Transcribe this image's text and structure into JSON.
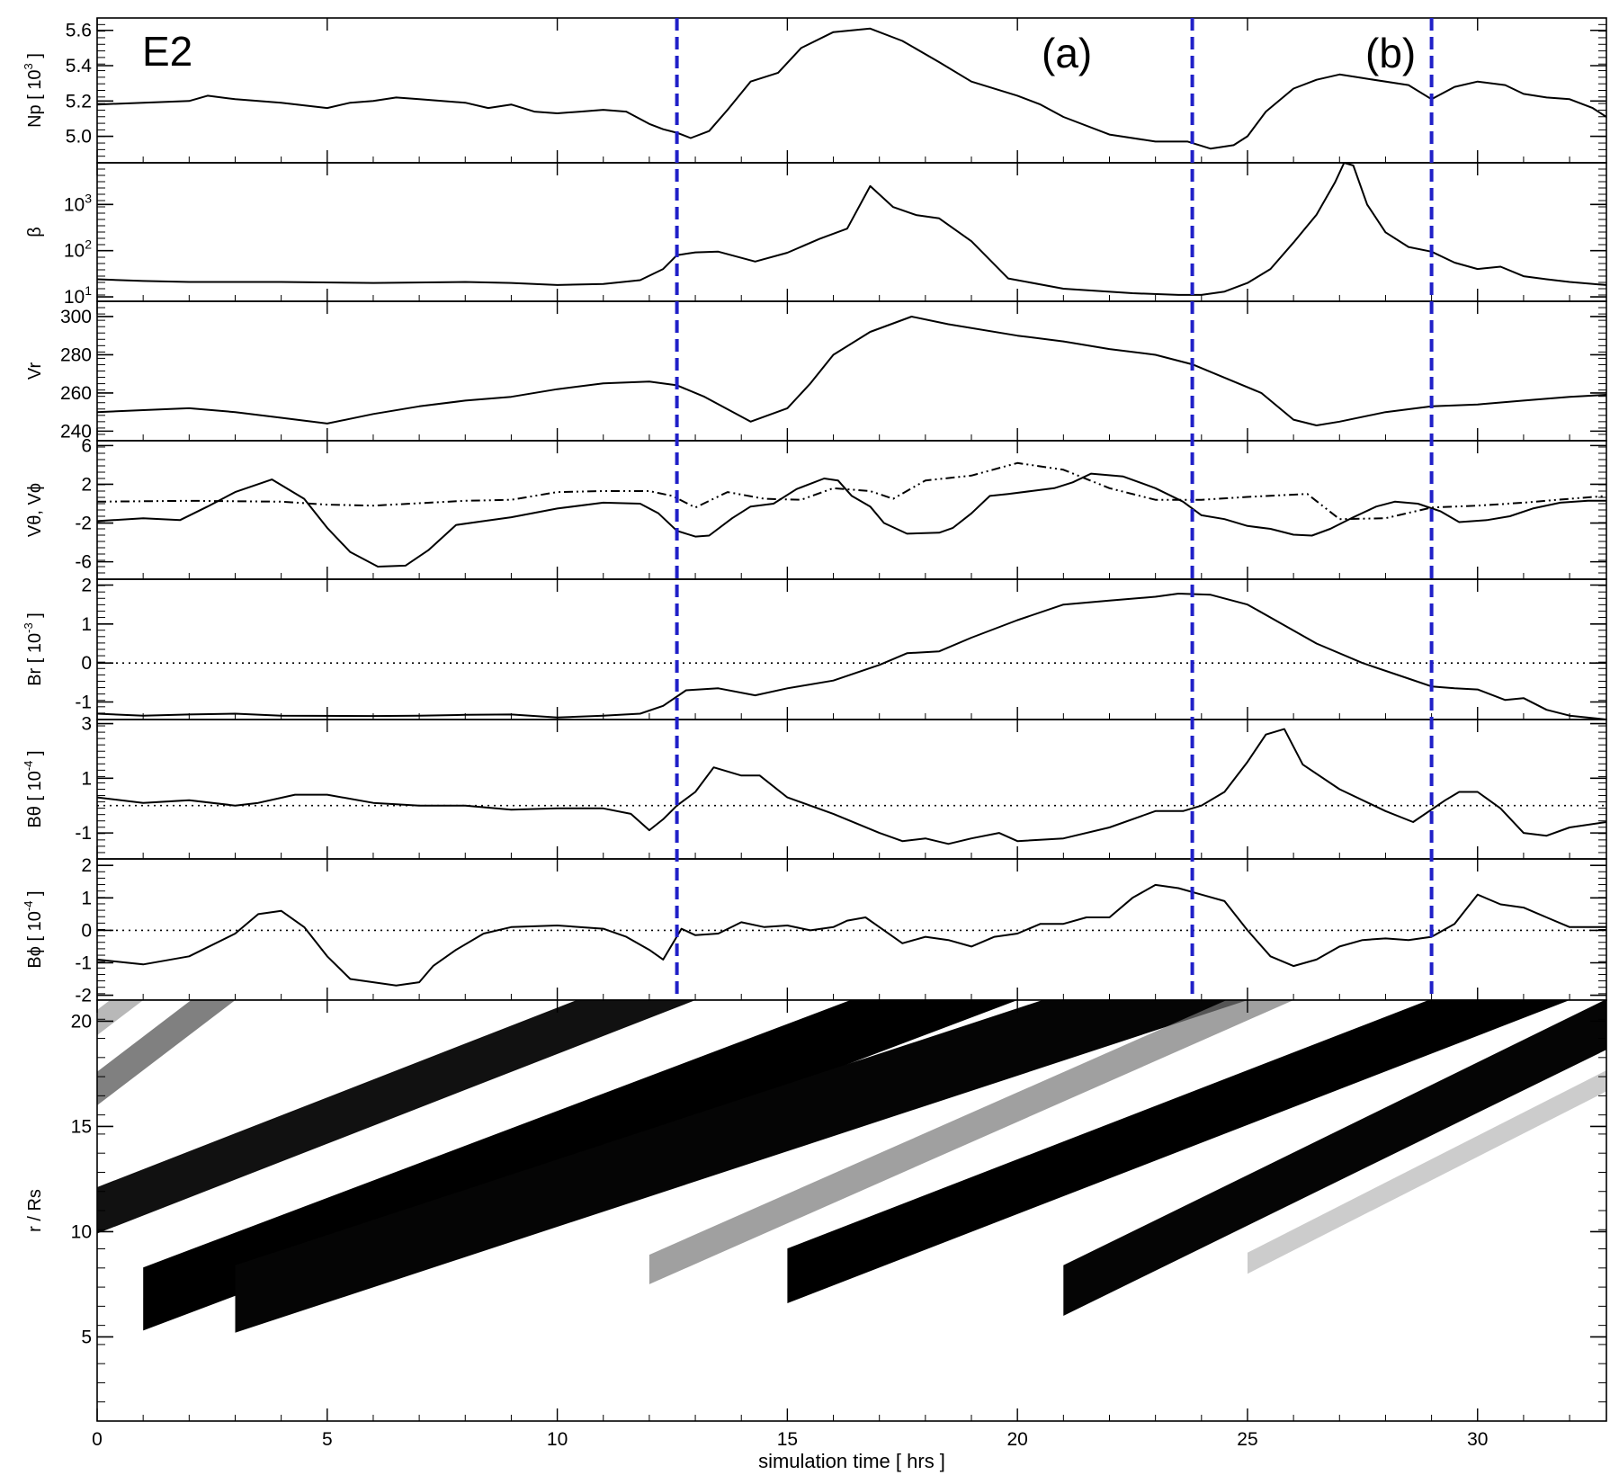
{
  "chart_data": [
    {
      "type": "line",
      "panel_label": "E2",
      "event_labels": [
        "(a)",
        "(b)"
      ],
      "ylabel": "Np [ 10^3 ]",
      "ylabel_parts": {
        "main": "Np [ 10",
        "sup": "3",
        "end": " ]"
      },
      "ylim": [
        4.85,
        5.67
      ],
      "yticks": [
        "5.0",
        "5.2",
        "5.4",
        "5.6"
      ],
      "ytick_values": [
        5.0,
        5.2,
        5.4,
        5.6
      ],
      "series": [
        {
          "style": "solid",
          "x": [
            0,
            1,
            2,
            2.4,
            3,
            4,
            5,
            5.5,
            6,
            6.5,
            7,
            8,
            8.5,
            9,
            9.5,
            10,
            10.5,
            11,
            11.5,
            12,
            12.3,
            12.6,
            12.9,
            13.3,
            13.7,
            14.2,
            14.8,
            15.3,
            16,
            16.8,
            17.5,
            18.3,
            19,
            20,
            20.5,
            21,
            22,
            23,
            23.7,
            24.2,
            24.7,
            25,
            25.4,
            26,
            26.5,
            27,
            27.5,
            28.5,
            29,
            29.5,
            30,
            30.6,
            31,
            31.5,
            32,
            32.5,
            32.8
          ],
          "values": [
            5.18,
            5.19,
            5.2,
            5.23,
            5.21,
            5.19,
            5.16,
            5.19,
            5.2,
            5.22,
            5.21,
            5.19,
            5.16,
            5.18,
            5.14,
            5.13,
            5.14,
            5.15,
            5.14,
            5.07,
            5.04,
            5.02,
            4.99,
            5.03,
            5.15,
            5.31,
            5.36,
            5.5,
            5.59,
            5.61,
            5.54,
            5.42,
            5.31,
            5.23,
            5.18,
            5.11,
            5.01,
            4.97,
            4.97,
            4.93,
            4.95,
            5.0,
            5.14,
            5.27,
            5.32,
            5.35,
            5.33,
            5.29,
            5.21,
            5.28,
            5.31,
            5.29,
            5.24,
            5.22,
            5.21,
            5.16,
            5.11
          ]
        }
      ]
    },
    {
      "type": "line",
      "ylabel": "β",
      "yscale": "log",
      "ylim": [
        8,
        8000
      ],
      "yticks": [
        "10",
        "10",
        "10"
      ],
      "ytick_exps": [
        "1",
        "2",
        "3"
      ],
      "ytick_values": [
        10,
        100,
        1000
      ],
      "series": [
        {
          "style": "solid",
          "x": [
            0,
            1,
            2,
            4,
            6,
            8,
            9,
            10,
            11,
            11.8,
            12.3,
            12.6,
            13,
            13.5,
            14.3,
            15,
            15.7,
            16.3,
            16.8,
            17.3,
            17.8,
            18.3,
            19,
            19.8,
            21,
            22.5,
            23.5,
            24,
            24.5,
            25,
            25.5,
            26,
            26.5,
            26.9,
            27.1,
            27.3,
            27.6,
            28,
            28.5,
            29,
            29.5,
            30,
            30.5,
            31,
            31.5,
            32,
            32.8
          ],
          "values": [
            24,
            22,
            21,
            21,
            20,
            21,
            20,
            18,
            19,
            23,
            40,
            80,
            92,
            95,
            58,
            90,
            180,
            300,
            2500,
            880,
            590,
            500,
            160,
            25,
            15,
            12,
            11,
            11,
            13,
            20,
            40,
            150,
            600,
            3000,
            8000,
            7000,
            1000,
            250,
            120,
            95,
            55,
            40,
            45,
            28,
            24,
            21,
            18
          ]
        }
      ]
    },
    {
      "type": "line",
      "ylabel": "Vr",
      "ylim": [
        235,
        308
      ],
      "yticks": [
        "240",
        "260",
        "280",
        "300"
      ],
      "ytick_values": [
        240,
        260,
        280,
        300
      ],
      "series": [
        {
          "style": "solid",
          "x": [
            0,
            1,
            2,
            3,
            4,
            5,
            6,
            7,
            8,
            9,
            10,
            11,
            12,
            12.6,
            13.2,
            14.2,
            15,
            15.5,
            16,
            16.8,
            17.7,
            18.5,
            20,
            21,
            22,
            23,
            23.8,
            24.5,
            25.3,
            26,
            26.5,
            27,
            28,
            29,
            30,
            31,
            32,
            32.8
          ],
          "values": [
            250,
            251,
            252,
            250,
            247,
            244,
            249,
            253,
            256,
            258,
            262,
            265,
            266,
            264,
            258,
            245,
            252,
            265,
            280,
            292,
            300,
            296,
            290,
            287,
            283,
            280,
            275,
            268,
            260,
            246,
            243,
            245,
            250,
            253,
            254,
            256,
            258,
            259
          ]
        }
      ]
    },
    {
      "type": "line",
      "ylabel": "Vθ, Vϕ",
      "ylim": [
        -7.8,
        6.5
      ],
      "yticks": [
        "-6",
        "-2",
        "2",
        "6"
      ],
      "ytick_values": [
        -6,
        -2,
        2,
        6
      ],
      "series": [
        {
          "name": "Vθ",
          "style": "solid",
          "x": [
            0,
            1,
            1.8,
            2.4,
            3,
            3.8,
            4.5,
            5,
            5.5,
            6.1,
            6.7,
            7.2,
            7.8,
            8.4,
            9,
            10,
            11,
            11.8,
            12.2,
            12.6,
            13,
            13.3,
            13.8,
            14.2,
            14.7,
            15.2,
            15.8,
            16.1,
            16.4,
            16.8,
            17.1,
            17.6,
            18.3,
            18.6,
            19,
            19.4,
            19.8,
            20.3,
            20.8,
            21.2,
            21.6,
            22.3,
            23,
            23.6,
            24,
            24.5,
            25,
            25.5,
            26,
            26.4,
            26.8,
            27.3,
            27.8,
            28.2,
            28.7,
            29.2,
            29.6,
            30.2,
            30.7,
            31.2,
            31.8,
            32.4,
            32.8
          ],
          "values": [
            -1.8,
            -1.5,
            -1.7,
            -0.3,
            1.2,
            2.5,
            0.5,
            -2.5,
            -5,
            -6.5,
            -6.4,
            -4.8,
            -2.2,
            -1.8,
            -1.4,
            -0.5,
            0.1,
            0,
            -1,
            -2.8,
            -3.4,
            -3.3,
            -1.5,
            -0.3,
            0,
            1.5,
            2.6,
            2.4,
            0.8,
            -0.3,
            -2,
            -3.1,
            -3,
            -2.5,
            -1,
            0.8,
            1,
            1.3,
            1.6,
            2.2,
            3.1,
            2.8,
            1.6,
            0.2,
            -1.2,
            -1.6,
            -2.3,
            -2.6,
            -3.2,
            -3.3,
            -2.6,
            -1.4,
            -0.3,
            0.2,
            0,
            -0.8,
            -1.9,
            -1.7,
            -1.3,
            -0.5,
            0.1,
            0.3,
            0.3
          ]
        },
        {
          "name": "Vϕ",
          "style": "dashdot",
          "x": [
            0,
            2,
            4,
            5,
            6,
            8,
            9,
            10,
            11,
            12,
            12.5,
            13,
            13.7,
            14.5,
            15.3,
            16,
            16.8,
            17.3,
            18,
            19,
            20,
            21,
            22,
            23,
            24,
            25,
            26.3,
            27,
            28,
            29,
            30,
            31,
            32,
            32.8
          ],
          "values": [
            0.2,
            0.3,
            0.2,
            -0.1,
            -0.2,
            0.3,
            0.4,
            1.2,
            1.3,
            1.3,
            0.8,
            -0.4,
            1.2,
            0.5,
            0.4,
            1.6,
            1.3,
            0.5,
            2.4,
            2.9,
            4.2,
            3.5,
            1.6,
            0.4,
            0.4,
            0.7,
            1,
            -1.6,
            -1.5,
            -0.4,
            -0.2,
            0.1,
            0.5,
            0.8
          ]
        }
      ]
    },
    {
      "type": "line",
      "ylabel": "Br [ 10^-3 ]",
      "ylabel_parts": {
        "main": "Br [ 10",
        "sup": "-3",
        "end": " ]"
      },
      "ylim": [
        -1.45,
        2.15
      ],
      "yticks": [
        "-1",
        "0",
        "1",
        "2"
      ],
      "ytick_values": [
        -1,
        0,
        1,
        2
      ],
      "zero_line": true,
      "series": [
        {
          "style": "solid",
          "x": [
            0,
            1,
            2,
            3,
            4,
            6,
            7,
            8,
            9,
            10,
            11,
            11.8,
            12.3,
            12.8,
            13.5,
            14.3,
            15,
            16,
            17,
            17.6,
            18.3,
            19,
            20,
            21,
            22,
            23,
            23.5,
            24.2,
            25,
            25.6,
            26.5,
            27.5,
            28.5,
            29,
            29.5,
            30,
            30.6,
            31,
            31.5,
            32,
            32.8
          ],
          "values": [
            -1.3,
            -1.35,
            -1.32,
            -1.3,
            -1.35,
            -1.36,
            -1.35,
            -1.33,
            -1.32,
            -1.4,
            -1.35,
            -1.3,
            -1.1,
            -0.7,
            -0.65,
            -0.83,
            -0.65,
            -0.45,
            -0.05,
            0.25,
            0.3,
            0.65,
            1.1,
            1.5,
            1.6,
            1.7,
            1.78,
            1.75,
            1.5,
            1.1,
            0.5,
            0,
            -0.4,
            -0.6,
            -0.65,
            -0.68,
            -0.95,
            -0.9,
            -1.2,
            -1.35,
            -1.45
          ]
        }
      ]
    },
    {
      "type": "line",
      "ylabel": "Bθ [ 10^-4 ]",
      "ylabel_parts": {
        "main": "Bθ [ 10",
        "sup": "-4",
        "end": " ]"
      },
      "ylim": [
        -1.95,
        3.15
      ],
      "yticks": [
        "-1",
        "1",
        "3"
      ],
      "ytick_values": [
        -1,
        1,
        3
      ],
      "zero_line": true,
      "series": [
        {
          "style": "solid",
          "x": [
            0,
            1,
            2,
            3,
            3.5,
            4.3,
            5,
            6,
            7,
            8,
            9,
            10,
            11,
            11.6,
            12,
            12.3,
            12.6,
            13,
            13.4,
            14,
            14.4,
            15,
            16,
            17,
            17.5,
            18,
            18.5,
            19,
            19.6,
            20,
            21,
            22,
            23,
            23.6,
            24,
            24.5,
            25,
            25.4,
            25.8,
            26.2,
            27,
            28,
            28.6,
            29.3,
            29.6,
            30,
            30.5,
            31,
            31.5,
            32,
            32.8
          ],
          "values": [
            0.3,
            0.1,
            0.2,
            0,
            0.1,
            0.4,
            0.4,
            0.1,
            0,
            0,
            -0.15,
            -0.1,
            -0.1,
            -0.3,
            -0.9,
            -0.5,
            0,
            0.5,
            1.4,
            1.1,
            1.1,
            0.3,
            -0.3,
            -1,
            -1.3,
            -1.2,
            -1.4,
            -1.2,
            -1,
            -1.3,
            -1.2,
            -0.8,
            -0.2,
            -0.2,
            0,
            0.5,
            1.6,
            2.6,
            2.8,
            1.5,
            0.6,
            -0.2,
            -0.6,
            0.2,
            0.5,
            0.5,
            -0.1,
            -1,
            -1.1,
            -0.8,
            -0.6
          ]
        }
      ]
    },
    {
      "type": "line",
      "ylabel": "Bϕ [ 10^-4 ]",
      "ylabel_parts": {
        "main": "Bϕ [ 10",
        "sup": "-4",
        "end": " ]"
      },
      "ylim": [
        -2.15,
        2.2
      ],
      "yticks": [
        "-2",
        "-1",
        "0",
        "1",
        "2"
      ],
      "ytick_values": [
        -2,
        -1,
        0,
        1,
        2
      ],
      "zero_line": true,
      "series": [
        {
          "style": "solid",
          "x": [
            0,
            1,
            2,
            3,
            3.5,
            4,
            4.5,
            5,
            5.5,
            6,
            6.5,
            7,
            7.3,
            7.8,
            8.4,
            9,
            10,
            11,
            11.5,
            12,
            12.3,
            12.7,
            13,
            13.5,
            14,
            14.5,
            15,
            15.5,
            16,
            16.3,
            16.7,
            17,
            17.5,
            18,
            18.5,
            19,
            19.5,
            20,
            20.5,
            21,
            21.5,
            22,
            22.5,
            23,
            23.5,
            24,
            24.5,
            25,
            25.5,
            26,
            26.5,
            27,
            27.5,
            28,
            28.5,
            29,
            29.5,
            30,
            30.5,
            31,
            31.5,
            32,
            32.8
          ],
          "values": [
            -0.9,
            -1.05,
            -0.8,
            -0.1,
            0.5,
            0.6,
            0.1,
            -0.8,
            -1.5,
            -1.6,
            -1.7,
            -1.6,
            -1.1,
            -0.6,
            -0.1,
            0.1,
            0.15,
            0.05,
            -0.2,
            -0.6,
            -0.9,
            0.05,
            -0.15,
            -0.1,
            0.25,
            0.1,
            0.15,
            0,
            0.1,
            0.3,
            0.4,
            0.1,
            -0.4,
            -0.2,
            -0.3,
            -0.5,
            -0.2,
            -0.1,
            0.2,
            0.2,
            0.4,
            0.4,
            1.0,
            1.4,
            1.3,
            1.1,
            0.9,
            0,
            -0.8,
            -1.1,
            -0.9,
            -0.5,
            -0.3,
            -0.25,
            -0.3,
            -0.2,
            0.2,
            1.1,
            0.8,
            0.7,
            0.4,
            0.1,
            0.1
          ]
        }
      ]
    },
    {
      "type": "heatmap",
      "ylabel": "r / Rs",
      "xlabel": "simulation time  [ hrs ]",
      "xlim": [
        0,
        32.8
      ],
      "ylim": [
        1,
        21
      ],
      "xticks": [
        "0",
        "5",
        "10",
        "15",
        "20",
        "25",
        "30"
      ],
      "xtick_values": [
        0,
        5,
        10,
        15,
        20,
        25,
        30
      ],
      "yticks": [
        "5",
        "10",
        "15",
        "20"
      ],
      "ytick_values": [
        5,
        10,
        15,
        20
      ],
      "colormap": "grayscale",
      "bands": [
        {
          "x0": -4,
          "r0": 6.5,
          "x1": 13,
          "r1": 21,
          "width": 2.2,
          "gray": "#111111",
          "opacity": 1
        },
        {
          "x0": -6,
          "r0": 6,
          "x1": 3,
          "r1": 21,
          "width": 1.6,
          "gray": "#555555",
          "opacity": 0.75
        },
        {
          "x0": -8,
          "r0": 6,
          "x1": 1,
          "r1": 21,
          "width": 1.2,
          "gray": "#888888",
          "opacity": 0.6
        },
        {
          "x0": 1,
          "r0": 5.3,
          "x1": 20,
          "r1": 21,
          "width": 3,
          "gray": "#000000",
          "opacity": 1
        },
        {
          "x0": 3,
          "r0": 5.2,
          "x1": 25,
          "r1": 21,
          "width": 3.2,
          "gray": "#050505",
          "opacity": 1
        },
        {
          "x0": 15,
          "r0": 6.6,
          "x1": 32,
          "r1": 21,
          "width": 2.6,
          "gray": "#000000",
          "opacity": 1
        },
        {
          "x0": 21,
          "r0": 6,
          "x1": 35,
          "r1": 21,
          "width": 2.4,
          "gray": "#050505",
          "opacity": 1
        },
        {
          "x0": 12,
          "r0": 7.5,
          "x1": 26,
          "r1": 21,
          "width": 1.4,
          "gray": "#777777",
          "opacity": 0.7
        },
        {
          "x0": 25,
          "r0": 8,
          "x1": 34,
          "r1": 18,
          "width": 1.0,
          "gray": "#999999",
          "opacity": 0.5
        }
      ]
    }
  ],
  "event_lines": {
    "x": [
      12.6,
      23.8,
      29.0
    ],
    "color": "#2020c8",
    "style": "dashed"
  }
}
